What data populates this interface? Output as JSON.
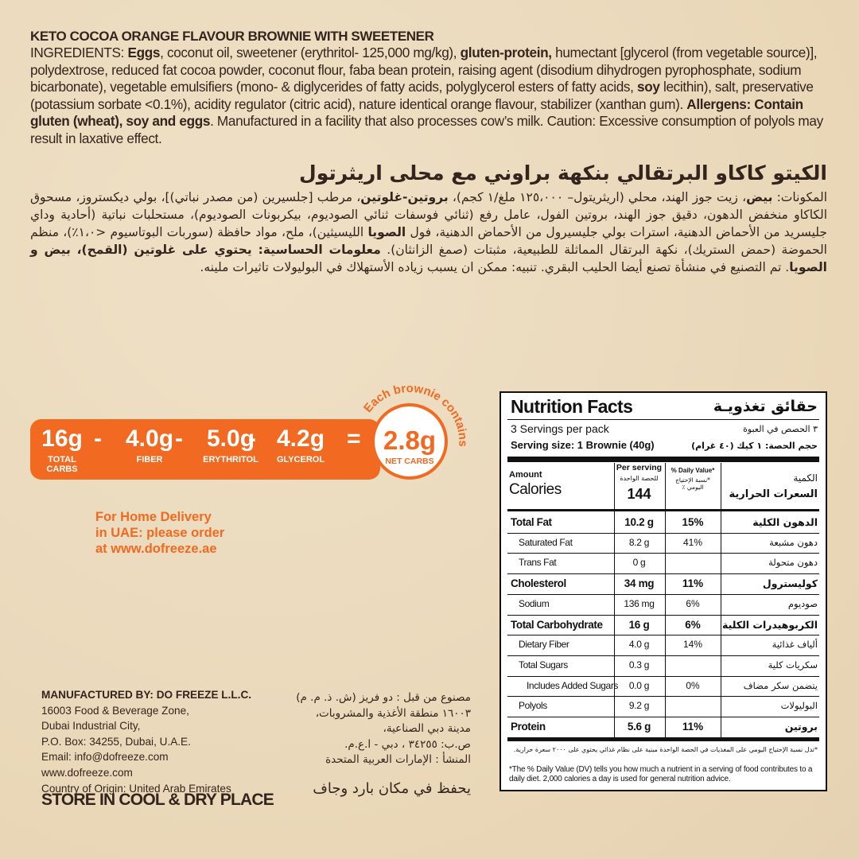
{
  "english": {
    "title": "KETO COCOA ORANGE FLAVOUR BROWNIE WITH SWEETENER",
    "ingredients": [
      {
        "text": "INGREDIENTS: ",
        "bold": false
      },
      {
        "text": "Eggs",
        "bold": true
      },
      {
        "text": ", coconut  oil, sweetener (erythritol- 125,000 mg/kg), ",
        "bold": false
      },
      {
        "text": "gluten-protein,",
        "bold": true
      },
      {
        "text": " humectant [glycerol (from vegetable source)], polydextrose, reduced fat cocoa powder, coconut flour, faba bean protein, raising agent (disodium dihydrogen pyrophosphate, sodium bicarbonate), vegetable emulsifiers (mono- & diglycerides of fatty acids, polyglycerol esters of fatty acids, ",
        "bold": false
      },
      {
        "text": "soy",
        "bold": true
      },
      {
        "text": " lecithin), salt, preservative (potassium sorbate <0.1%), acidity regulator (citric acid), nature identical orange flavour, stabilizer (xanthan gum). ",
        "bold": false
      },
      {
        "text": "Allergens: Contain gluten (wheat), soy and eggs",
        "bold": true
      },
      {
        "text": ". Manufactured in a facility that also processes cow’s milk. Caution: Excessive consumption of polyols may result in laxative effect.",
        "bold": false
      }
    ]
  },
  "arabic": {
    "title": "الكيتو كاكاو البرتقالي بنكهة براوني مع محلى اريثرتول",
    "ingredients": [
      {
        "text": "المكونات: ",
        "bold": false
      },
      {
        "text": "بيض",
        "bold": true
      },
      {
        "text": "، زيت جوز الهند، محلي (اريثريتول– ١٢٥،٠٠٠ ملغ/١ كجم)، ",
        "bold": false
      },
      {
        "text": "بروتين-غلوتين",
        "bold": true
      },
      {
        "text": "، مرطب [جلسيرين (من مصدر نباتي)]، بولي ديكستروز، مسحوق الكاكاو منخفض الدهون، دقيق جوز الهند، بروتين الفول، عامل رفع (ثنائي فوسفات ثنائي الصوديوم، بيكربونات الصوديوم)، مستحلبات نباتية (أحادية وداي جليسريد من الأحماض الدهنية، استرات بولي جليسيرول من الأحماض الدهنية، فول ",
        "bold": false
      },
      {
        "text": "الصويا",
        "bold": true
      },
      {
        "text": " الليسيثين)، ملح، مواد حافظة (سوربات البوتاسيوم <١،٠٪)، منظم الحموضة (حمض الستريك)، نكهة البرتقال المماثلة للطبيعية، مثبتات (صمغ الزانثان). ",
        "bold": false
      },
      {
        "text": "معلومات الحساسية: يحتوي على غلوتين (القمح)، بيض و الصويا",
        "bold": true
      },
      {
        "text": ". تم التصنيع في منشأة تصنع أيضا الحليب البقري. تنبيه: ممكن ان يسبب زياده الأستهلاك في البوليولات تاثيرات ملينه.",
        "bold": false
      }
    ]
  },
  "net_carbs": {
    "terms": [
      {
        "value": "16g",
        "label": "TOTAL CARBS"
      },
      {
        "value": "4.0g",
        "label": "FIBER"
      },
      {
        "value": "5.0g",
        "label": "ERYTHRITOL"
      },
      {
        "value": "4.2g",
        "label": "GLYCEROL"
      }
    ],
    "minus": "-",
    "equals": "=",
    "result": {
      "value": "2.8g",
      "label": "NET CARBS"
    },
    "caption": "Each brownie contains"
  },
  "delivery": [
    "For Home Delivery",
    "in UAE: please order",
    "at www.dofreeze.ae"
  ],
  "manufacturer": {
    "english": [
      "MANUFACTURED BY: DO FREEZE L.L.C.",
      "16003 Food & Beverage Zone,",
      "Dubai Industrial City,",
      "P.O. Box: 34255, Dubai, U.A.E.",
      "Email: info@dofreeze.com",
      "www.dofreeze.com",
      "Country of Origin: United Arab Emirates"
    ],
    "arabic": [
      "مصنوع من قبل : دو فريز (ش. ذ. م. م)",
      "١٦٠٠٣ منطقة الأغذية والمشروبات،",
      "مدينة دبي الصناعية،",
      "ص.ب: ٣٤٢٥٥ ، دبي - ا.ع.م.",
      "المنشأ : الإمارات العربية المتحدة"
    ],
    "store_english": "STORE IN COOL & DRY PLACE",
    "store_arabic": "يحفظ في مكان بارد وجاف"
  },
  "nutrition": {
    "title": "Nutrition Facts",
    "title_ar": "حقائق تغذويـة",
    "servings": "3 Servings per pack",
    "servings_ar": "٣ الحصص في العبوة",
    "serving_size": "Serving size: 1 Brownie (40g)",
    "serving_size_ar": "حجم الحصة: ١ كيك (٤٠ غرام)",
    "amount": "Amount",
    "calories": "Calories",
    "per_serving": "Per serving",
    "per_serving_ar": "للحصة الواحدة",
    "calories_value": "144",
    "daily_value": "% Daily Value*",
    "daily_value_ar": "*نسبة الإحتياج اليومي ٪",
    "amount_ar": "الكمية",
    "calories_ar": "السعرات الحرارية",
    "rows": [
      {
        "name": "Total Fat",
        "amount": "10.2 g",
        "dv": "15%",
        "name_ar": "الدهون الكلية",
        "bold": true,
        "indent": 0
      },
      {
        "name": "Saturated Fat",
        "amount": "8.2 g",
        "dv": "41%",
        "name_ar": "دهون مشبعة",
        "bold": false,
        "indent": 1
      },
      {
        "name": "Trans Fat",
        "amount": "0 g",
        "dv": null,
        "name_ar": "دهون متحولة",
        "bold": false,
        "indent": 1
      },
      {
        "name": "Cholesterol",
        "amount": "34 mg",
        "dv": "11%",
        "name_ar": "كوليسترول",
        "bold": true,
        "indent": 0
      },
      {
        "name": "Sodium",
        "amount": "136 mg",
        "dv": "6%",
        "name_ar": "صوديوم",
        "bold": false,
        "indent": 1
      },
      {
        "name": "Total Carbohydrate",
        "amount": "16 g",
        "dv": "6%",
        "name_ar": "الكربوهيدرات الكلية",
        "bold": true,
        "indent": 0
      },
      {
        "name": "Dietary Fiber",
        "amount": "4.0 g",
        "dv": "14%",
        "name_ar": "ألياف غذائية",
        "bold": false,
        "indent": 1
      },
      {
        "name": "Total Sugars",
        "amount": "0.3 g",
        "dv": null,
        "name_ar": "سكريات كلية",
        "bold": false,
        "indent": 1
      },
      {
        "name": "Includes Added Sugars",
        "amount": "0.0 g",
        "dv": "0%",
        "name_ar": "يتضمن سكر مضاف",
        "bold": false,
        "indent": 2
      },
      {
        "name": "Polyols",
        "amount": "9.2 g",
        "dv": null,
        "name_ar": "البوليولات",
        "bold": false,
        "indent": 1
      },
      {
        "name": "Protein",
        "amount": "5.6 g",
        "dv": "11%",
        "name_ar": "بروتين",
        "bold": true,
        "indent": 0
      }
    ],
    "footnote_ar": "*تدل نسبة الإحتياج اليومي على المغذيات في الحصة الواحدة مبنية على نظام غذائي يحتوي على ٢٠٠٠ سعرة حرارية.",
    "footnote": "*The % Daily Value (DV) tells you how much a nutrient in a serving of food contributes to a daily diet. 2,000 calories a day is used for general nutrition advice."
  }
}
